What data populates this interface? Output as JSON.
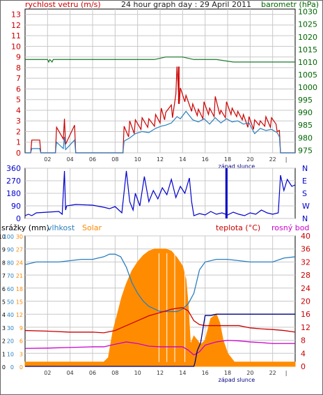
{
  "chart_data": [
    {
      "type": "line",
      "title": "24 hour graph day : 29 April 2011",
      "left_axis": {
        "label": "rychlost vetru (m/s)",
        "color": "#cc0000",
        "ticks": [
          "0",
          "1",
          "2",
          "3",
          "4",
          "5",
          "6",
          "7",
          "8",
          "9",
          "10",
          "11",
          "12",
          "13"
        ],
        "range": [
          0,
          13.5
        ]
      },
      "right_axis": {
        "label": "barometr (hPa)",
        "color": "#006600",
        "ticks": [
          "975",
          "980",
          "985",
          "990",
          "995",
          "1000",
          "1005",
          "1010",
          "1015",
          "1020",
          "1025",
          "1030"
        ],
        "range": [
          974,
          1031
        ]
      },
      "x_ticks": [
        "02",
        "04",
        "06",
        "08",
        "10",
        "12",
        "14",
        "16",
        "18",
        "20",
        "22"
      ],
      "x_range": [
        0,
        24
      ],
      "annotation": "západ slunce",
      "series": [
        {
          "color": "#cc0000",
          "x": [
            0,
            0.5,
            0.6,
            1.3,
            1.4,
            2.7,
            2.8,
            3.4,
            3.5,
            3.6,
            4.4,
            4.5,
            8.7,
            8.8,
            9.2,
            9.3,
            9.7,
            9.8,
            10.3,
            10.4,
            10.9,
            11.0,
            11.5,
            11.6,
            12.0,
            12.1,
            12.4,
            12.5,
            13.0,
            13.1,
            13.4,
            13.5,
            13.7,
            13.8,
            14.2,
            14.3,
            14.8,
            14.9,
            15.3,
            15.4,
            15.8,
            15.9,
            16.3,
            16.4,
            16.8,
            16.9,
            17.3,
            17.4,
            17.8,
            17.9,
            18.3,
            18.4,
            18.8,
            18.9,
            19.3,
            19.4,
            19.8,
            19.9,
            20.3,
            20.4,
            20.8,
            20.9,
            21.3,
            21.4,
            21.8,
            21.9,
            22.3,
            22.4,
            22.6,
            22.7,
            24
          ],
          "y": [
            0,
            0,
            1.2,
            1.2,
            0,
            0,
            2.4,
            1.3,
            3.2,
            0.8,
            2.6,
            0,
            0,
            2.5,
            1.5,
            3.0,
            1.8,
            3.1,
            2.2,
            3.3,
            2.4,
            3.2,
            2.5,
            3.6,
            2.8,
            4.2,
            3.1,
            3.8,
            4.5,
            3.3,
            5.5,
            8.1,
            4.6,
            6.1,
            4.8,
            5.4,
            3.9,
            4.6,
            3.5,
            4.1,
            3.2,
            4.8,
            3.6,
            4.2,
            3.4,
            5.3,
            3.6,
            4.0,
            3.3,
            4.8,
            3.6,
            4.2,
            3.4,
            3.9,
            3.1,
            3.6,
            2.4,
            3.4,
            2.2,
            3.1,
            2.6,
            3.0,
            2.5,
            3.4,
            2.4,
            3.3,
            2.7,
            2.0,
            2.1,
            0,
            0
          ]
        },
        {
          "color": "#2a7fbf",
          "x": [
            0,
            0.5,
            0.6,
            1.3,
            1.4,
            2.7,
            2.8,
            3.4,
            3.5,
            3.6,
            4.4,
            4.5,
            8.7,
            8.8,
            9.3,
            9.8,
            10.4,
            11.0,
            11.6,
            12.1,
            12.5,
            13.0,
            13.5,
            13.8,
            14.3,
            14.9,
            15.4,
            15.9,
            16.4,
            16.9,
            17.4,
            17.9,
            18.4,
            18.9,
            19.4,
            19.9,
            20.4,
            20.9,
            21.4,
            21.9,
            22.4,
            22.6,
            22.7,
            24
          ],
          "y": [
            0,
            0,
            0.4,
            0.4,
            0,
            0,
            1.0,
            0.4,
            1.5,
            0.3,
            1.2,
            0,
            0,
            1.1,
            1.4,
            1.8,
            2.0,
            1.9,
            2.3,
            2.5,
            2.6,
            2.8,
            3.4,
            3.2,
            3.9,
            3.1,
            2.9,
            3.2,
            2.7,
            3.3,
            2.8,
            3.2,
            2.9,
            3.0,
            2.7,
            2.8,
            1.8,
            2.3,
            2.1,
            2.2,
            1.9,
            1.5,
            0,
            0
          ]
        },
        {
          "color": "#1a7a2a",
          "x": [
            0,
            2.0,
            2.1,
            2.2,
            2.4,
            2.5,
            9.0,
            11.5,
            12.5,
            14.0,
            15.0,
            17.0,
            18.5,
            22.5,
            24
          ],
          "y": [
            1011,
            1011,
            1010,
            1011,
            1010,
            1011,
            1011,
            1011,
            1012,
            1012,
            1011,
            1011,
            1010,
            1010,
            1010
          ]
        }
      ]
    },
    {
      "type": "line",
      "ylabel_left_ticks": [
        "0",
        "90",
        "180",
        "270",
        "360"
      ],
      "right_labels": [
        "N",
        "W",
        "S",
        "E",
        "N"
      ],
      "range": [
        0,
        360
      ],
      "x_ticks": [
        "02",
        "04",
        "06",
        "08",
        "10",
        "12",
        "14",
        "16",
        "18",
        "20",
        "22"
      ],
      "x_range": [
        0,
        24
      ],
      "annotation": "západ slunce",
      "series": [
        {
          "color": "#0000cc",
          "x": [
            0,
            0.3,
            0.6,
            1.0,
            2.0,
            3.0,
            3.3,
            3.5,
            3.6,
            3.7,
            4.5,
            6.0,
            7.0,
            7.5,
            8.0,
            8.6,
            9.0,
            9.3,
            9.6,
            9.8,
            10.2,
            10.6,
            11.0,
            11.4,
            11.8,
            12.2,
            12.6,
            13.0,
            13.4,
            13.8,
            14.2,
            14.6,
            14.8,
            15.0,
            15.5,
            16.0,
            16.5,
            17.0,
            17.5,
            18.0,
            18.5,
            19.0,
            19.5,
            20.0,
            20.5,
            21.0,
            21.5,
            22.0,
            22.5,
            22.7,
            23.0,
            23.3,
            23.7,
            24
          ],
          "y": [
            20,
            30,
            20,
            40,
            45,
            50,
            30,
            340,
            60,
            90,
            100,
            95,
            80,
            70,
            85,
            40,
            340,
            120,
            60,
            180,
            90,
            300,
            120,
            200,
            140,
            220,
            170,
            280,
            150,
            230,
            180,
            290,
            120,
            20,
            35,
            25,
            50,
            30,
            40,
            25,
            45,
            30,
            20,
            40,
            30,
            60,
            40,
            30,
            40,
            310,
            200,
            280,
            230,
            240
          ]
        }
      ]
    },
    {
      "type": "area",
      "left_axis_labels": [
        "srážky (mm)",
        "vlhkost",
        "Solar"
      ],
      "left_axis_colors": [
        "#000000",
        "#2a7fbf",
        "#ff8800"
      ],
      "right_axis_labels": [
        "teplota (°C)",
        "rosný bod"
      ],
      "right_axis_colors": [
        "#cc0000",
        "#cc00cc"
      ],
      "precip_ticks": [
        "0",
        "1",
        "2",
        "3",
        "4",
        "5",
        "6",
        "7",
        "8",
        "9",
        "10"
      ],
      "humidity_ticks": [
        "0",
        "10",
        "20",
        "30",
        "40",
        "50",
        "60",
        "70",
        "80",
        "90",
        "100"
      ],
      "solar_ticks": [
        "0",
        "3",
        "6",
        "9",
        "12",
        "15",
        "18",
        "21",
        "24",
        "27",
        "30"
      ],
      "temp_ticks": [
        "0",
        "4",
        "8",
        "12",
        "16",
        "20",
        "24",
        "28",
        "32",
        "36",
        "40"
      ],
      "x_ticks": [
        "02",
        "04",
        "06",
        "08",
        "10",
        "12",
        "14",
        "16",
        "18",
        "20",
        "22"
      ],
      "x_range": [
        0,
        24
      ],
      "annotation": "západ slunce",
      "series": [
        {
          "name": "Solar",
          "color": "#ff8800",
          "x": [
            0,
            7.0,
            7.4,
            7.8,
            8.2,
            8.6,
            9.0,
            9.5,
            10.0,
            10.5,
            11.0,
            11.5,
            12.0,
            12.5,
            13.0,
            13.5,
            14.0,
            14.3,
            14.5,
            14.7,
            15.0,
            15.3,
            15.6,
            16.0,
            16.5,
            17.0,
            17.3,
            17.6,
            18.0,
            18.3,
            18.6,
            19.0,
            24
          ],
          "y": [
            1,
            1,
            2,
            8,
            12,
            16,
            19,
            22,
            24,
            25.5,
            26.5,
            27,
            27,
            27,
            26.5,
            25,
            23,
            20,
            14,
            5,
            7,
            6,
            5,
            6,
            11,
            12,
            10,
            6,
            3,
            2,
            1,
            1,
            1
          ]
        },
        {
          "name": "vlhkost",
          "color": "#2a7fbf",
          "x": [
            0,
            1.0,
            2.0,
            3.0,
            4.0,
            5.0,
            6.0,
            7.0,
            7.5,
            8.0,
            8.5,
            9.0,
            9.5,
            10.0,
            10.5,
            11.0,
            11.5,
            12.0,
            12.5,
            13.0,
            13.5,
            14.0,
            14.5,
            15.0,
            15.5,
            16.0,
            17.0,
            18.0,
            19.0,
            20.0,
            21.0,
            22.0,
            23.0,
            24
          ],
          "y": [
            78,
            80,
            80,
            80,
            81,
            82,
            82,
            84,
            86,
            86,
            84,
            76,
            64,
            56,
            50,
            46,
            44,
            42,
            42,
            42,
            42,
            44,
            48,
            56,
            74,
            80,
            82,
            82,
            81,
            80,
            80,
            80,
            83,
            84
          ]
        },
        {
          "name": "teplota",
          "color": "#cc0000",
          "x": [
            0,
            2.0,
            4.0,
            6.0,
            7.0,
            8.0,
            9.0,
            10.0,
            11.0,
            12.0,
            13.0,
            13.5,
            14.0,
            14.5,
            15.0,
            15.5,
            16.0,
            17.0,
            18.0,
            19.0,
            20.0,
            21.0,
            22.0,
            23.0,
            24
          ],
          "y": [
            11,
            10.8,
            10.5,
            10.5,
            10.3,
            11,
            12.5,
            14,
            15.5,
            16.5,
            17.5,
            17.8,
            18,
            17,
            14,
            12.8,
            12.5,
            12.5,
            12.5,
            12.5,
            11.8,
            11.5,
            11.3,
            11.0,
            10.5
          ]
        },
        {
          "name": "rosný bod",
          "color": "#cc00cc",
          "x": [
            0,
            2.0,
            4.0,
            6.0,
            7.0,
            8.0,
            9.0,
            10.0,
            11.0,
            12.0,
            13.0,
            14.0,
            14.5,
            15.0,
            15.5,
            16.0,
            17.0,
            18.0,
            19.0,
            20.0,
            21.0,
            22.0,
            24
          ],
          "y": [
            5.5,
            5.6,
            5.8,
            6.0,
            6.0,
            6.8,
            7.5,
            7.0,
            6.2,
            6.0,
            6.0,
            6.0,
            5.0,
            3.5,
            4.5,
            6.5,
            7.5,
            8.0,
            7.8,
            7.5,
            7.3,
            7.0,
            7.0
          ]
        },
        {
          "name": "srážky",
          "color": "#000080",
          "x": [
            0,
            15.0,
            15.1,
            15.3,
            15.6,
            16.0,
            16.5,
            17.0,
            17.5,
            18.0,
            24
          ],
          "y": [
            0,
            0,
            0.3,
            1.2,
            1.8,
            3.9,
            3.9,
            4.0,
            4.0,
            4.0,
            4.0
          ]
        }
      ]
    }
  ]
}
